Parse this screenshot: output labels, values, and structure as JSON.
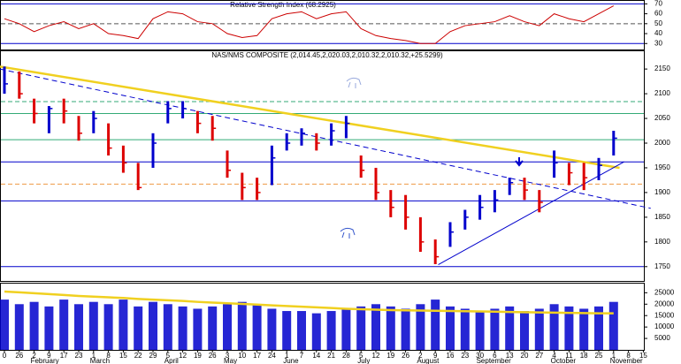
{
  "chart_data": {
    "type": "stock",
    "categories": [
      "0",
      "26",
      "2",
      "9",
      "17",
      "23",
      "1",
      "8",
      "15",
      "22",
      "29",
      "5",
      "12",
      "19",
      "26",
      "3",
      "10",
      "17",
      "24",
      "1",
      "7",
      "14",
      "21",
      "28",
      "5",
      "12",
      "19",
      "26",
      "2",
      "9",
      "16",
      "23",
      "30",
      "6",
      "13",
      "20",
      "27",
      "4",
      "11",
      "18",
      "25",
      "1",
      "8",
      "15"
    ],
    "month_labels": [
      null,
      null,
      "February",
      null,
      null,
      null,
      "March",
      null,
      null,
      null,
      null,
      "April",
      null,
      null,
      null,
      "May",
      null,
      null,
      null,
      "June",
      null,
      null,
      null,
      null,
      "July",
      null,
      null,
      null,
      "August",
      null,
      null,
      null,
      "September",
      null,
      null,
      null,
      null,
      "October",
      null,
      null,
      null,
      "November",
      null,
      null
    ],
    "up_color": "#0000cc",
    "down_color": "#dd0000",
    "rsi": {
      "title": "Relative Strength Index (68.2925)",
      "ylim": [
        24,
        73
      ],
      "yticks": [
        30,
        40,
        50,
        60,
        70
      ],
      "color": "#cc0000",
      "values": [
        55,
        50,
        42,
        48,
        52,
        45,
        50,
        40,
        38,
        35,
        55,
        62,
        60,
        52,
        50,
        40,
        36,
        38,
        55,
        60,
        62,
        55,
        60,
        62,
        45,
        38,
        35,
        33,
        30,
        30,
        42,
        48,
        50,
        52,
        58,
        52,
        48,
        60,
        55,
        52,
        60,
        68,
        null,
        null
      ],
      "levels": [
        {
          "value": 70,
          "color": "#0000cc",
          "dash": false
        },
        {
          "value": 50,
          "color": "#555555",
          "dash": true
        },
        {
          "value": 30,
          "color": "#0000cc",
          "dash": false
        }
      ]
    },
    "price": {
      "title": "NAS/NMS COMPOSITE (2,014.45,2,020.03,2,010.32,2,010.32,+25.5299)",
      "ylim": [
        1721,
        2186
      ],
      "yticks": [
        1750,
        1800,
        1850,
        1900,
        1950,
        2000,
        2050,
        2100,
        2150
      ],
      "high": [
        2155,
        2145,
        2090,
        2075,
        2090,
        2055,
        2065,
        2040,
        1995,
        1960,
        2020,
        2085,
        2085,
        2065,
        2055,
        1985,
        1940,
        1930,
        1995,
        2020,
        2030,
        2020,
        2040,
        2055,
        1975,
        1950,
        1905,
        1895,
        1850,
        1805,
        1840,
        1865,
        1895,
        1905,
        1930,
        1930,
        1905,
        1985,
        1960,
        1960,
        1970,
        2025,
        null,
        null
      ],
      "low": [
        2100,
        2090,
        2040,
        2020,
        2040,
        2005,
        2020,
        1975,
        1940,
        1905,
        1950,
        2040,
        2050,
        2020,
        2005,
        1930,
        1885,
        1885,
        1915,
        1985,
        1995,
        1985,
        1995,
        2010,
        1930,
        1885,
        1850,
        1825,
        1780,
        1755,
        1790,
        1825,
        1845,
        1860,
        1895,
        1885,
        1860,
        1930,
        1915,
        1905,
        1925,
        1975,
        null,
        null
      ],
      "close": [
        2120,
        2100,
        2060,
        2070,
        2065,
        2020,
        2050,
        1990,
        1960,
        1910,
        2000,
        2070,
        2070,
        2040,
        2030,
        1945,
        1910,
        1900,
        1970,
        2000,
        2020,
        2000,
        2025,
        2040,
        1945,
        1900,
        1870,
        1850,
        1800,
        1770,
        1820,
        1850,
        1870,
        1885,
        1920,
        1905,
        1880,
        1960,
        1940,
        1930,
        1955,
        2010,
        null,
        null
      ],
      "levels": [
        {
          "value": 2084,
          "color": "#33aa77",
          "dash": true
        },
        {
          "value": 2060,
          "color": "#33aa77",
          "dash": false
        },
        {
          "value": 2007,
          "color": "#33aa77",
          "dash": false
        },
        {
          "value": 1962,
          "color": "#0000cc",
          "dash": false
        },
        {
          "value": 1917,
          "color": "#ee9944",
          "dash": true
        },
        {
          "value": 1883,
          "color": "#0000cc",
          "dash": false
        },
        {
          "value": 1750,
          "color": "#0000cc",
          "dash": false
        }
      ],
      "trendlines": [
        {
          "from": [
            -0.3,
            2155
          ],
          "to": [
            41.4,
            1950
          ],
          "color": "#f0d020",
          "dash": false,
          "width": 2.5
        },
        {
          "from": [
            -0.3,
            2150
          ],
          "to": [
            43.5,
            1868
          ],
          "color": "#0000cc",
          "dash": true,
          "width": 1
        },
        {
          "from": [
            29.2,
            1754
          ],
          "to": [
            41.7,
            1962
          ],
          "color": "#0000cc",
          "dash": false,
          "width": 1
        }
      ]
    },
    "volume": {
      "ylim": [
        0,
        29000
      ],
      "yticks": [
        5000,
        10000,
        15000,
        20000,
        25000
      ],
      "color": "#0000cc",
      "values": [
        22000,
        20000,
        21000,
        19000,
        22000,
        20000,
        21000,
        20000,
        22000,
        19000,
        21000,
        20000,
        19000,
        18000,
        19000,
        20000,
        21000,
        20000,
        18000,
        17000,
        17000,
        16000,
        17000,
        18000,
        19000,
        20000,
        19000,
        18000,
        20000,
        22000,
        19000,
        18000,
        17000,
        18000,
        19000,
        17000,
        18000,
        20000,
        19000,
        18000,
        19000,
        21000,
        null,
        null
      ],
      "ma_color": "#f0d020",
      "ma": [
        25500,
        25200,
        24800,
        24400,
        24000,
        23600,
        23300,
        23000,
        22700,
        22300,
        22000,
        21700,
        21400,
        21000,
        20700,
        20400,
        20100,
        19800,
        19500,
        19200,
        18900,
        18600,
        18300,
        18000,
        17800,
        17600,
        17400,
        17300,
        17200,
        17100,
        17000,
        16900,
        16800,
        16700,
        16600,
        16500,
        16400,
        16300,
        16200,
        16100,
        16000,
        16000,
        null,
        null
      ]
    }
  }
}
